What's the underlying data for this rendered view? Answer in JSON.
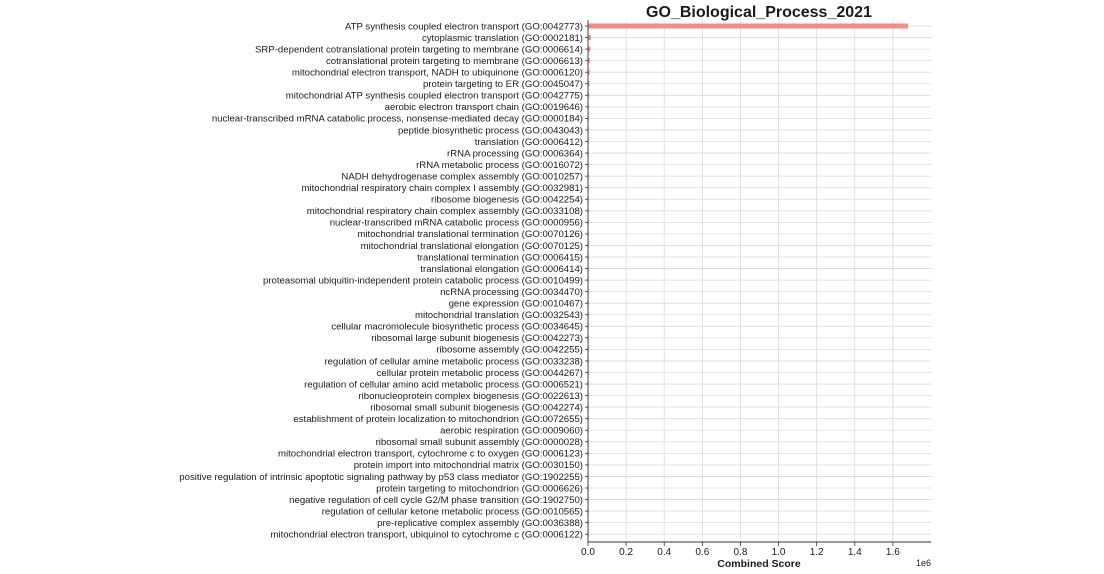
{
  "chart_data": {
    "type": "bar",
    "orientation": "horizontal",
    "title": "GO_Biological_Process_2021",
    "xlabel": "Combined Score",
    "x_exponent_label": "1e6",
    "xlim": [
      0,
      1800000
    ],
    "xticks": [
      0,
      200000,
      400000,
      600000,
      800000,
      1000000,
      1200000,
      1400000,
      1600000
    ],
    "xtick_labels": [
      "0.0",
      "0.2",
      "0.4",
      "0.6",
      "0.8",
      "1.0",
      "1.2",
      "1.4",
      "1.6"
    ],
    "grid": true,
    "bar_color": "#f28e8a",
    "categories": [
      "ATP synthesis coupled electron transport (GO:0042773)",
      "cytoplasmic translation (GO:0002181)",
      "SRP-dependent cotranslational protein targeting to membrane (GO:0006614)",
      "cotranslational protein targeting to membrane (GO:0006613)",
      "mitochondrial electron transport, NADH to ubiquinone (GO:0006120)",
      "protein targeting to ER (GO:0045047)",
      "mitochondrial ATP synthesis coupled electron transport (GO:0042775)",
      "aerobic electron transport chain (GO:0019646)",
      "nuclear-transcribed mRNA catabolic process, nonsense-mediated decay (GO:0000184)",
      "peptide biosynthetic process (GO:0043043)",
      "translation (GO:0006412)",
      "rRNA processing (GO:0006364)",
      "rRNA metabolic process (GO:0016072)",
      "NADH dehydrogenase complex assembly (GO:0010257)",
      "mitochondrial respiratory chain complex I assembly (GO:0032981)",
      "ribosome biogenesis (GO:0042254)",
      "mitochondrial respiratory chain complex assembly (GO:0033108)",
      "nuclear-transcribed mRNA catabolic process (GO:0000956)",
      "mitochondrial translational termination (GO:0070126)",
      "mitochondrial translational elongation (GO:0070125)",
      "translational termination (GO:0006415)",
      "translational elongation (GO:0006414)",
      "proteasomal ubiquitin-independent protein catabolic process (GO:0010499)",
      "ncRNA processing (GO:0034470)",
      "gene expression (GO:0010467)",
      "mitochondrial translation (GO:0032543)",
      "cellular macromolecule biosynthetic process (GO:0034645)",
      "ribosomal large subunit biogenesis (GO:0042273)",
      "ribosome assembly (GO:0042255)",
      "regulation of cellular amine metabolic process (GO:0033238)",
      "cellular protein metabolic process (GO:0044267)",
      "regulation of cellular amino acid metabolic process (GO:0006521)",
      "ribonucleoprotein complex biogenesis (GO:0022613)",
      "ribosomal small subunit biogenesis (GO:0042274)",
      "establishment of protein localization to mitochondrion (GO:0072655)",
      "aerobic respiration (GO:0009060)",
      "ribosomal small subunit assembly (GO:0000028)",
      "mitochondrial electron transport, cytochrome c to oxygen (GO:0006123)",
      "protein import into mitochondrial matrix (GO:0030150)",
      "positive regulation of intrinsic apoptotic signaling pathway by p53 class mediator (GO:1902255)",
      "protein targeting to mitochondrion (GO:0006626)",
      "negative regulation of cell cycle G2/M phase transition (GO:1902750)",
      "regulation of cellular ketone metabolic process (GO:0010565)",
      "pre-replicative complex assembly (GO:0036388)",
      "mitochondrial electron transport, ubiquinol to cytochrome c (GO:0006122)"
    ],
    "values": [
      1680000,
      15000,
      12000,
      10000,
      9000,
      8000,
      6000,
      5000,
      4500,
      4000,
      3500,
      3000,
      3000,
      2800,
      2600,
      2500,
      2400,
      2300,
      2200,
      2100,
      2000,
      1900,
      1800,
      1700,
      1600,
      1500,
      1400,
      1300,
      1200,
      1100,
      1000,
      950,
      900,
      850,
      800,
      750,
      700,
      650,
      600,
      550,
      500,
      450,
      400,
      350,
      300
    ]
  }
}
